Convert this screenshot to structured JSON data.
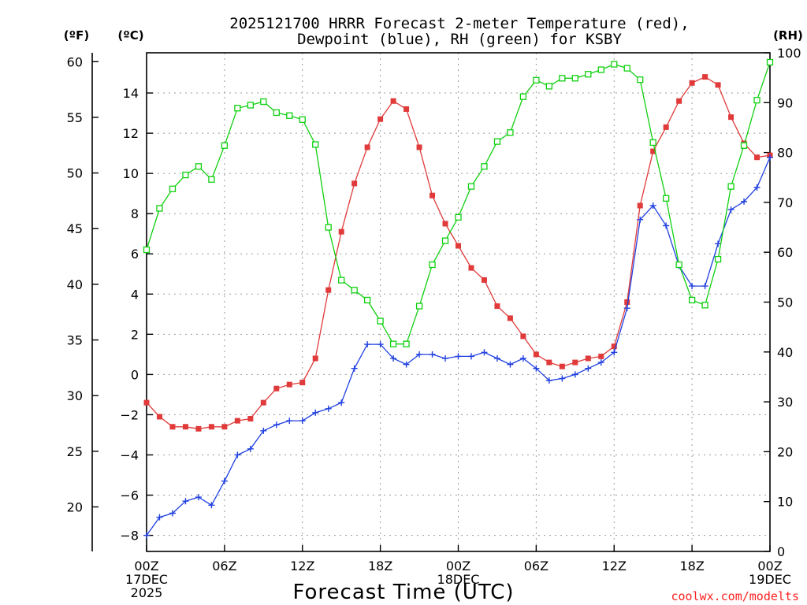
{
  "chart_data": {
    "type": "line",
    "title": [
      "2025121700 HRRR Forecast 2-meter Temperature (red),",
      "Dewpoint (blue), RH (green) for KSBY"
    ],
    "xlabel": "Forecast Time (UTC)",
    "credit": "coolwx.com/modelts",
    "units": {
      "left_f": "(ºF)",
      "left_c": "(ºC)",
      "right_rh": "(RH)"
    },
    "x_hours": [
      0,
      1,
      2,
      3,
      4,
      5,
      6,
      7,
      8,
      9,
      10,
      11,
      12,
      13,
      14,
      15,
      16,
      17,
      18,
      19,
      20,
      21,
      22,
      23,
      24,
      25,
      26,
      27,
      28,
      29,
      30,
      31,
      32,
      33,
      34,
      35,
      36,
      37,
      38,
      39,
      40,
      41,
      42,
      43,
      44,
      45,
      46,
      47,
      48
    ],
    "x_ticks": [
      {
        "hour": 0,
        "lines": [
          "00Z",
          "17DEC",
          "2025"
        ]
      },
      {
        "hour": 6,
        "lines": [
          "06Z"
        ]
      },
      {
        "hour": 12,
        "lines": [
          "12Z"
        ]
      },
      {
        "hour": 18,
        "lines": [
          "18Z"
        ]
      },
      {
        "hour": 24,
        "lines": [
          "00Z",
          "18DEC"
        ]
      },
      {
        "hour": 30,
        "lines": [
          "06Z"
        ]
      },
      {
        "hour": 36,
        "lines": [
          "12Z"
        ]
      },
      {
        "hour": 42,
        "lines": [
          "18Z"
        ]
      },
      {
        "hour": 48,
        "lines": [
          "00Z",
          "19DEC"
        ]
      }
    ],
    "c_axis": {
      "range": [
        -8.8,
        16
      ],
      "ticks": [
        -8,
        -6,
        -4,
        -2,
        0,
        2,
        4,
        6,
        8,
        10,
        12,
        14
      ],
      "labels": [
        "−8",
        "−6",
        "−4",
        "−2",
        "0",
        "2",
        "4",
        "6",
        "8",
        "10",
        "12",
        "14"
      ]
    },
    "f_axis": {
      "range": [
        16,
        60.8
      ],
      "ticks": [
        20,
        25,
        30,
        35,
        40,
        45,
        50,
        55,
        60
      ],
      "labels": [
        "20",
        "25",
        "30",
        "35",
        "40",
        "45",
        "50",
        "55",
        "60"
      ]
    },
    "rh_axis": {
      "range": [
        0,
        100
      ],
      "ticks": [
        0,
        10,
        20,
        30,
        40,
        50,
        60,
        70,
        80,
        90,
        100
      ],
      "labels": [
        "0",
        "10",
        "20",
        "30",
        "40",
        "50",
        "60",
        "70",
        "80",
        "90",
        "100"
      ]
    },
    "series": [
      {
        "axis": "c",
        "color": "#e03a3a",
        "marker": "filled-square",
        "values": [
          -1.4,
          -2.1,
          -2.6,
          -2.6,
          -2.7,
          -2.6,
          -2.6,
          -2.3,
          -2.2,
          -1.4,
          -0.7,
          -0.5,
          -0.4,
          0.8,
          4.2,
          7.1,
          9.5,
          11.3,
          12.7,
          13.6,
          13.2,
          11.3,
          8.9,
          7.5,
          6.4,
          5.3,
          4.7,
          3.4,
          2.8,
          1.9,
          1.0,
          0.6,
          0.4,
          0.6,
          0.8,
          0.9,
          1.4,
          3.6,
          8.4,
          11.1,
          12.3,
          13.6,
          14.5,
          14.8,
          14.4,
          12.8,
          11.5,
          10.8,
          10.9
        ]
      },
      {
        "axis": "c",
        "color": "#2040e0",
        "marker": "plus",
        "values": [
          -8.0,
          -7.1,
          -6.9,
          -6.3,
          -6.1,
          -6.5,
          -5.3,
          -4.0,
          -3.7,
          -2.8,
          -2.5,
          -2.3,
          -2.3,
          -1.9,
          -1.7,
          -1.4,
          0.3,
          1.5,
          1.5,
          0.8,
          0.5,
          1.0,
          1.0,
          0.8,
          0.9,
          0.9,
          1.1,
          0.8,
          0.5,
          0.8,
          0.3,
          -0.3,
          -0.2,
          0.0,
          0.3,
          0.6,
          1.1,
          3.3,
          7.7,
          8.4,
          7.4,
          5.4,
          4.4,
          4.4,
          6.5,
          8.2,
          8.6,
          9.3,
          10.8
        ]
      },
      {
        "axis": "rh",
        "color": "#10d010",
        "marker": "open-square",
        "values": [
          60.5,
          68.8,
          72.7,
          75.5,
          77.2,
          74.6,
          81.4,
          88.9,
          89.5,
          90.2,
          88.0,
          87.4,
          86.6,
          81.6,
          65.0,
          54.4,
          52.4,
          50.4,
          46.2,
          41.6,
          41.6,
          49.2,
          57.5,
          62.3,
          67.0,
          73.2,
          77.2,
          82.2,
          84.0,
          91.2,
          94.5,
          93.3,
          94.9,
          94.9,
          95.7,
          96.6,
          97.7,
          96.9,
          94.6,
          82.0,
          70.8,
          57.5,
          50.4,
          49.4,
          58.6,
          73.2,
          81.4,
          90.5,
          98.1
        ]
      }
    ]
  }
}
